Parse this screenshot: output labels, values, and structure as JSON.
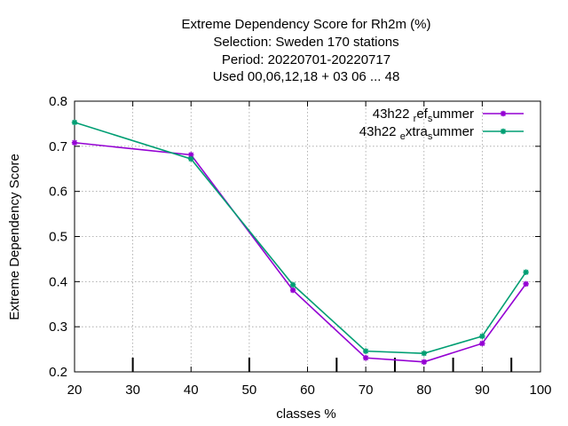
{
  "chart_data": {
    "type": "line",
    "title_lines": [
      "Extreme Dependency Score  for Rh2m (%)",
      "Selection: Sweden    170 stations",
      "Period: 20220701-20220717",
      "Used  00,06,12,18  + 03 06 ... 48"
    ],
    "xlabel": "classes %",
    "ylabel": "Extreme Dependency Score",
    "xlim": [
      20,
      100
    ],
    "ylim": [
      0.2,
      0.8
    ],
    "x_ticks": [
      20,
      30,
      40,
      50,
      60,
      70,
      80,
      90,
      100
    ],
    "x_tick_labels": [
      "20",
      "30",
      "40",
      "50",
      "60",
      "70",
      "80",
      "90",
      "100"
    ],
    "y_ticks": [
      0.2,
      0.3,
      0.4,
      0.5,
      0.6,
      0.7,
      0.8
    ],
    "y_tick_labels": [
      "0.2",
      "0.3",
      "0.4",
      "0.5",
      "0.6",
      "0.7",
      "0.8"
    ],
    "extra_x_marks": [
      30,
      50,
      65,
      75,
      85,
      95
    ],
    "grid": true,
    "legend_position": "top-right",
    "series": [
      {
        "name": "43h22 ref summer",
        "legend_parts": [
          "43h22 ",
          "r",
          "ef",
          "s",
          "ummer"
        ],
        "color": "#9400d3",
        "x": [
          20,
          40,
          57.5,
          70,
          80,
          90,
          97.5
        ],
        "y": [
          0.708,
          0.681,
          0.381,
          0.231,
          0.222,
          0.263,
          0.395
        ]
      },
      {
        "name": "43h22 extra summer",
        "legend_parts": [
          "43h22 ",
          "e",
          "xtra",
          "s",
          "ummer"
        ],
        "color": "#009e73",
        "x": [
          20,
          40,
          57.5,
          70,
          80,
          90,
          97.5
        ],
        "y": [
          0.753,
          0.672,
          0.393,
          0.246,
          0.241,
          0.279,
          0.421
        ]
      }
    ]
  }
}
